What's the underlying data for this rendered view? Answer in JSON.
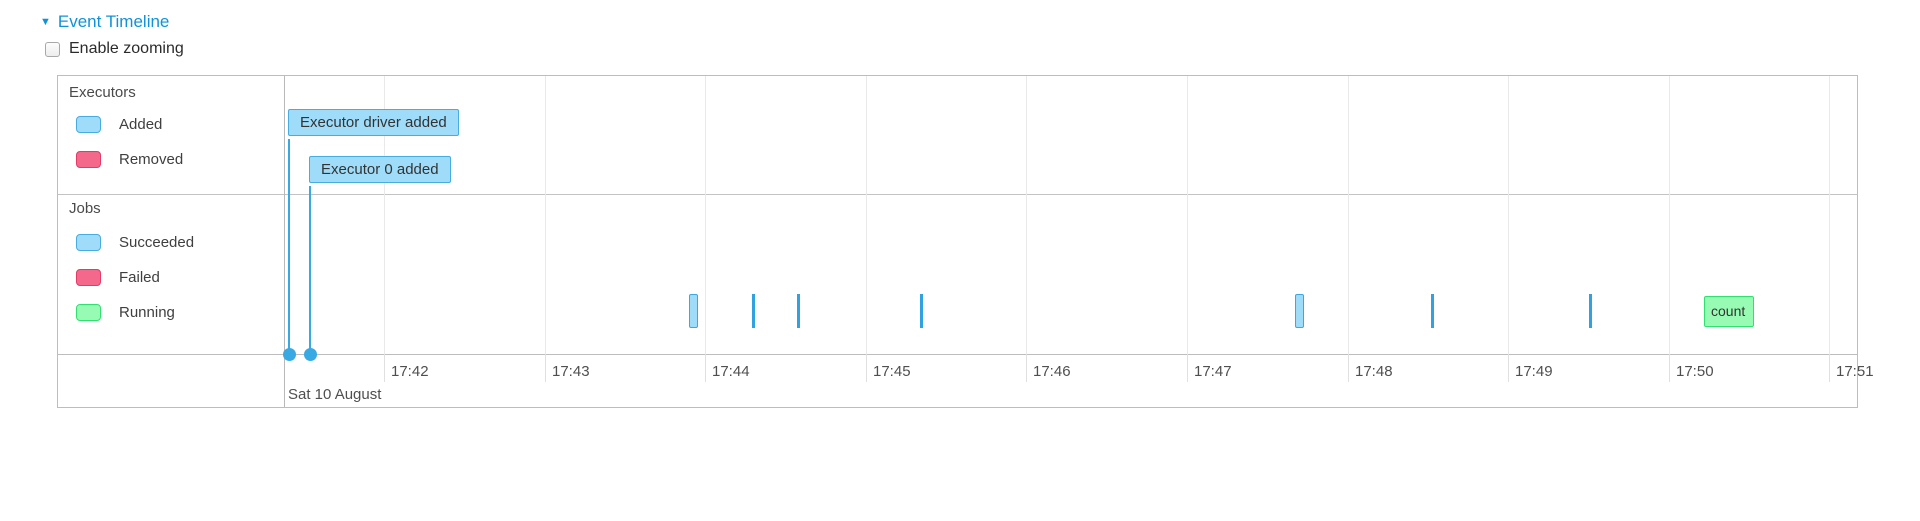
{
  "header": {
    "arrow": "▼",
    "title": "Event Timeline"
  },
  "controls": {
    "enable_zooming_label": "Enable zooming",
    "checkbox_checked": false
  },
  "colors": {
    "link_blue": "#1092d8",
    "panel_border": "#bdbdbd",
    "grid_minor": "#e9e9e9",
    "blue_fill": "#9edcf9",
    "blue_border": "#48acdf",
    "pink_fill": "#f4688c",
    "pink_border": "#e43a65",
    "green_fill": "#98fbb3",
    "green_border": "#33df71",
    "solid_blue": "#30a2e2",
    "dot_blue": "#39a9e4"
  },
  "timeline": {
    "groups": [
      {
        "name": "Executors",
        "legend": [
          {
            "label": "Added",
            "swatch": "blue"
          },
          {
            "label": "Removed",
            "swatch": "pink"
          }
        ],
        "items": [
          {
            "kind": "box",
            "label": "Executor driver added",
            "t": -0.6,
            "row": 0
          },
          {
            "kind": "box",
            "label": "Executor 0 added",
            "t": -0.47,
            "row": 1
          }
        ]
      },
      {
        "name": "Jobs",
        "legend": [
          {
            "label": "Succeeded",
            "swatch": "blue"
          },
          {
            "label": "Failed",
            "swatch": "pink"
          },
          {
            "label": "Running",
            "swatch": "green"
          }
        ],
        "items": [
          {
            "kind": "bar_outlined",
            "t": 1.9
          },
          {
            "kind": "bar",
            "t": 2.29
          },
          {
            "kind": "bar",
            "t": 2.57
          },
          {
            "kind": "bar",
            "t": 3.34
          },
          {
            "kind": "bar_outlined",
            "t": 5.67
          },
          {
            "kind": "bar",
            "t": 6.52
          },
          {
            "kind": "bar",
            "t": 7.5
          },
          {
            "kind": "range_green",
            "label": "count",
            "t": 8.22,
            "dur": 0.31
          }
        ]
      }
    ],
    "axis": {
      "minute_labels": [
        "17:42",
        "17:43",
        "17:44",
        "17:45",
        "17:46",
        "17:47",
        "17:48",
        "17:49",
        "17:50",
        "17:51"
      ],
      "date_label": "Sat 10 August"
    }
  }
}
